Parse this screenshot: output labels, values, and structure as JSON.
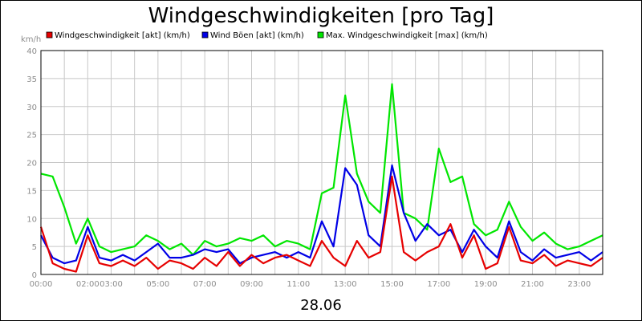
{
  "chart_data": {
    "type": "line",
    "title": "Windgeschwindigkeiten [pro Tag]",
    "unit_label": "km/h",
    "date_label": "28.06",
    "ylim": [
      0,
      40
    ],
    "yticks": [
      0,
      5,
      10,
      15,
      20,
      25,
      30,
      35,
      40
    ],
    "xlim": [
      "00:00",
      "24:00"
    ],
    "xticks": [
      "00:00",
      "02:00",
      "03:00",
      "05:00",
      "07:00",
      "09:00",
      "11:00",
      "13:00",
      "15:00",
      "17:00",
      "19:00",
      "21:00",
      "23:00"
    ],
    "grid": true,
    "legend_position": "top",
    "series": [
      {
        "name": "Windgeschwindigkeit [akt] (km/h)",
        "color": "#e60000",
        "x": [
          "00:00",
          "00:30",
          "01:00",
          "01:30",
          "02:00",
          "02:30",
          "03:00",
          "03:30",
          "04:00",
          "04:30",
          "05:00",
          "05:30",
          "06:00",
          "06:30",
          "07:00",
          "07:30",
          "08:00",
          "08:30",
          "09:00",
          "09:30",
          "10:00",
          "10:30",
          "11:00",
          "11:30",
          "12:00",
          "12:30",
          "13:00",
          "13:30",
          "14:00",
          "14:30",
          "15:00",
          "15:30",
          "16:00",
          "16:30",
          "17:00",
          "17:30",
          "18:00",
          "18:30",
          "19:00",
          "19:30",
          "20:00",
          "20:30",
          "21:00",
          "21:30",
          "22:00",
          "22:30",
          "23:00",
          "23:30",
          "24:00"
        ],
        "values": [
          8.5,
          2.0,
          1.0,
          0.5,
          7.0,
          2.0,
          1.5,
          2.5,
          1.5,
          3.0,
          1.0,
          2.5,
          2.0,
          1.0,
          3.0,
          1.5,
          4.0,
          1.5,
          3.5,
          2.0,
          3.0,
          3.5,
          2.5,
          1.5,
          6.0,
          3.0,
          1.5,
          6.0,
          3.0,
          4.0,
          17.5,
          4.0,
          2.5,
          4.0,
          5.0,
          9.0,
          3.0,
          7.0,
          1.0,
          2.0,
          8.5,
          2.5,
          2.0,
          3.5,
          1.5,
          2.5,
          2.0,
          1.5,
          3.0
        ]
      },
      {
        "name": "Wind Böen [akt] (km/h)",
        "color": "#0000e6",
        "x": [
          "00:00",
          "00:30",
          "01:00",
          "01:30",
          "02:00",
          "02:30",
          "03:00",
          "03:30",
          "04:00",
          "04:30",
          "05:00",
          "05:30",
          "06:00",
          "06:30",
          "07:00",
          "07:30",
          "08:00",
          "08:30",
          "09:00",
          "09:30",
          "10:00",
          "10:30",
          "11:00",
          "11:30",
          "12:00",
          "12:30",
          "13:00",
          "13:30",
          "14:00",
          "14:30",
          "15:00",
          "15:30",
          "16:00",
          "16:30",
          "17:00",
          "17:30",
          "18:00",
          "18:30",
          "19:00",
          "19:30",
          "20:00",
          "20:30",
          "21:00",
          "21:30",
          "22:00",
          "22:30",
          "23:00",
          "23:30",
          "24:00"
        ],
        "values": [
          7.0,
          3.0,
          2.0,
          2.5,
          8.5,
          3.0,
          2.5,
          3.5,
          2.5,
          4.0,
          5.5,
          3.0,
          3.0,
          3.5,
          4.5,
          4.0,
          4.5,
          2.0,
          3.0,
          3.5,
          4.0,
          3.0,
          4.0,
          3.0,
          9.5,
          5.0,
          19.0,
          16.0,
          7.0,
          5.0,
          19.5,
          11.0,
          6.0,
          9.0,
          7.0,
          8.0,
          4.0,
          8.0,
          5.0,
          3.0,
          9.5,
          4.0,
          2.5,
          4.5,
          3.0,
          3.5,
          4.0,
          2.5,
          4.0
        ]
      },
      {
        "name": "Max. Windgeschwindigkeit [max] (km/h)",
        "color": "#00e600",
        "x": [
          "00:00",
          "00:30",
          "01:00",
          "01:30",
          "02:00",
          "02:30",
          "03:00",
          "03:30",
          "04:00",
          "04:30",
          "05:00",
          "05:30",
          "06:00",
          "06:30",
          "07:00",
          "07:30",
          "08:00",
          "08:30",
          "09:00",
          "09:30",
          "10:00",
          "10:30",
          "11:00",
          "11:30",
          "12:00",
          "12:30",
          "13:00",
          "13:30",
          "14:00",
          "14:30",
          "15:00",
          "15:30",
          "16:00",
          "16:30",
          "17:00",
          "17:30",
          "18:00",
          "18:30",
          "19:00",
          "19:30",
          "20:00",
          "20:30",
          "21:00",
          "21:30",
          "22:00",
          "22:30",
          "23:00",
          "23:30",
          "24:00"
        ],
        "values": [
          18.0,
          17.5,
          12.0,
          5.5,
          10.0,
          5.0,
          4.0,
          4.5,
          5.0,
          7.0,
          6.0,
          4.5,
          5.5,
          3.5,
          6.0,
          5.0,
          5.5,
          6.5,
          6.0,
          7.0,
          5.0,
          6.0,
          5.5,
          4.5,
          14.5,
          15.5,
          32.0,
          18.0,
          13.0,
          11.0,
          34.0,
          11.0,
          10.0,
          8.0,
          22.5,
          16.5,
          17.5,
          9.0,
          7.0,
          8.0,
          13.0,
          8.5,
          6.0,
          7.5,
          5.5,
          4.5,
          5.0,
          6.0,
          7.0
        ]
      }
    ]
  }
}
